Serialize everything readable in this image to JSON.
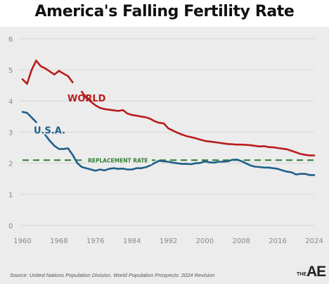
{
  "title": "America's Falling Fertility Rate",
  "source": "Source: United Nations Population Division. World Population Prospects: 2024 Revision",
  "logo": {
    "small": "THE",
    "large": "AE"
  },
  "colors": {
    "world": "#b91c1c",
    "usa": "#1f5f8b",
    "replacement": "#2e7d32",
    "grid": "#d6d6d6",
    "axis_text": "#888888"
  },
  "chart_data": {
    "type": "line",
    "title": "America's Falling Fertility Rate",
    "xlabel": "",
    "ylabel": "",
    "xlim": [
      1960,
      2024
    ],
    "ylim": [
      0,
      6
    ],
    "xticks": [
      1960,
      1968,
      1976,
      1984,
      1992,
      2000,
      2008,
      2016,
      2024
    ],
    "yticks": [
      0,
      1,
      2,
      3,
      4,
      5,
      6
    ],
    "grid": true,
    "legend": "inline labels",
    "reference_line": {
      "label": "REPLACEMENT RATE",
      "value": 2.1
    },
    "series": [
      {
        "name": "WORLD",
        "x": [
          1960,
          1961,
          1962,
          1963,
          1964,
          1965,
          1966,
          1967,
          1968,
          1969,
          1970,
          1971,
          1972,
          1973,
          1974,
          1975,
          1976,
          1977,
          1978,
          1979,
          1980,
          1981,
          1982,
          1983,
          1984,
          1985,
          1986,
          1987,
          1988,
          1989,
          1990,
          1991,
          1992,
          1993,
          1994,
          1995,
          1996,
          1997,
          1998,
          1999,
          2000,
          2001,
          2002,
          2003,
          2004,
          2005,
          2006,
          2007,
          2008,
          2009,
          2010,
          2011,
          2012,
          2013,
          2014,
          2015,
          2016,
          2017,
          2018,
          2019,
          2020,
          2021,
          2022,
          2023,
          2024
        ],
        "y": [
          4.7,
          4.55,
          5.0,
          5.3,
          5.12,
          5.05,
          4.95,
          4.85,
          4.97,
          4.88,
          4.8,
          4.6,
          4.45,
          4.3,
          4.1,
          3.98,
          3.86,
          3.78,
          3.74,
          3.72,
          3.7,
          3.68,
          3.71,
          3.6,
          3.55,
          3.53,
          3.5,
          3.48,
          3.43,
          3.35,
          3.3,
          3.28,
          3.12,
          3.05,
          2.98,
          2.92,
          2.87,
          2.84,
          2.8,
          2.76,
          2.72,
          2.7,
          2.68,
          2.66,
          2.64,
          2.62,
          2.61,
          2.6,
          2.6,
          2.59,
          2.58,
          2.56,
          2.54,
          2.55,
          2.52,
          2.51,
          2.49,
          2.47,
          2.45,
          2.4,
          2.35,
          2.3,
          2.27,
          2.25,
          2.25
        ]
      },
      {
        "name": "U.S.A.",
        "x": [
          1960,
          1961,
          1962,
          1963,
          1964,
          1965,
          1966,
          1967,
          1968,
          1969,
          1970,
          1971,
          1972,
          1973,
          1974,
          1975,
          1976,
          1977,
          1978,
          1979,
          1980,
          1981,
          1982,
          1983,
          1984,
          1985,
          1986,
          1987,
          1988,
          1989,
          1990,
          1991,
          1992,
          1993,
          1994,
          1995,
          1996,
          1997,
          1998,
          1999,
          2000,
          2001,
          2002,
          2003,
          2004,
          2005,
          2006,
          2007,
          2008,
          2009,
          2010,
          2011,
          2012,
          2013,
          2014,
          2015,
          2016,
          2017,
          2018,
          2019,
          2020,
          2021,
          2022,
          2023,
          2024
        ],
        "y": [
          3.65,
          3.62,
          3.47,
          3.32,
          3.2,
          2.91,
          2.72,
          2.56,
          2.46,
          2.46,
          2.48,
          2.27,
          2.01,
          1.88,
          1.84,
          1.8,
          1.76,
          1.8,
          1.77,
          1.82,
          1.84,
          1.82,
          1.83,
          1.8,
          1.8,
          1.84,
          1.84,
          1.87,
          1.93,
          2.01,
          2.08,
          2.06,
          2.05,
          2.02,
          2.0,
          1.98,
          1.98,
          1.97,
          2.0,
          2.01,
          2.06,
          2.03,
          2.02,
          2.05,
          2.05,
          2.06,
          2.11,
          2.12,
          2.07,
          2.0,
          1.93,
          1.89,
          1.88,
          1.86,
          1.86,
          1.84,
          1.82,
          1.77,
          1.73,
          1.71,
          1.64,
          1.66,
          1.66,
          1.62,
          1.62
        ]
      }
    ]
  }
}
